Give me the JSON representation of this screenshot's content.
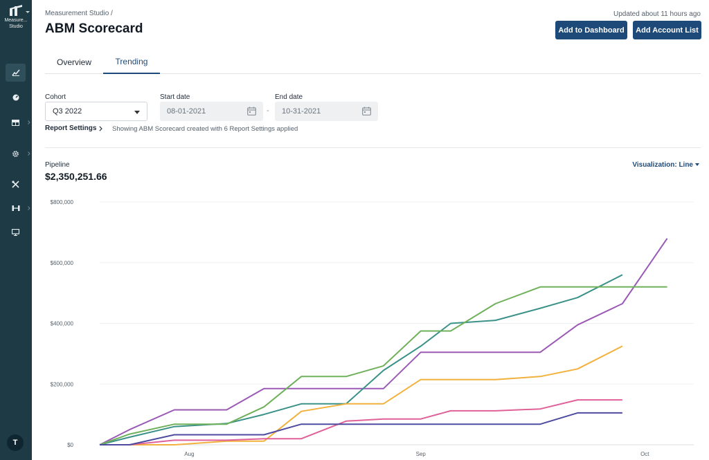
{
  "sidebar": {
    "brand_text": "Measure... Studio",
    "avatar_initial": "T",
    "items": [
      {
        "name": "trending-icon"
      },
      {
        "name": "gauge-icon"
      },
      {
        "name": "table-icon"
      },
      {
        "name": "gear-icon"
      },
      {
        "name": "tools-icon"
      },
      {
        "name": "connector-icon"
      },
      {
        "name": "monitor-icon"
      }
    ]
  },
  "header": {
    "breadcrumb": "Measurement Studio /",
    "title": "ABM Scorecard",
    "updated": "Updated about 11 hours ago",
    "add_dashboard_label": "Add to Dashboard",
    "add_account_list_label": "Add Account List"
  },
  "tabs": {
    "overview": "Overview",
    "trending": "Trending",
    "active": "Trending"
  },
  "filters": {
    "cohort_label": "Cohort",
    "cohort_value": "Q3 2022",
    "start_label": "Start date",
    "start_value": "08-01-2021",
    "end_label": "End date",
    "end_value": "10-31-2021",
    "separator": "-",
    "report_settings_label": "Report Settings",
    "report_note": "Showing ABM Scorecard created with 6 Report Settings applied"
  },
  "metric": {
    "label": "Pipeline",
    "value": "$2,350,251.66",
    "visualization": "Visualization: Line"
  },
  "colors": {
    "sidebar_bg": "#1d3a45",
    "accent": "#1d4a78"
  },
  "chart_data": {
    "type": "line",
    "x": [
      "2021-07-20",
      "2021-07-24",
      "2021-07-30",
      "2021-08-06",
      "2021-08-11",
      "2021-08-16",
      "2021-08-22",
      "2021-08-27",
      "2021-09-01",
      "2021-09-05",
      "2021-09-11",
      "2021-09-17",
      "2021-09-22",
      "2021-09-28",
      "2021-10-04",
      "2021-10-07"
    ],
    "x_ticks": [
      "Aug",
      "Sep",
      "Oct"
    ],
    "y_ticks": [
      "$0",
      "$200,000",
      "$400,000",
      "$600,000",
      "$800,000"
    ],
    "ylim": [
      0,
      800000
    ],
    "grid": true,
    "series": [
      {
        "color": "#9b59b6",
        "values": [
          0,
          50000,
          115000,
          115000,
          185000,
          185000,
          185000,
          185000,
          305000,
          305000,
          305000,
          305000,
          395000,
          465000,
          680000,
          null
        ]
      },
      {
        "color": "#3a9188",
        "values": [
          0,
          25000,
          60000,
          70000,
          100000,
          135000,
          135000,
          245000,
          325000,
          400000,
          410000,
          450000,
          485000,
          560000,
          null,
          null
        ]
      },
      {
        "color": "#6fb05a",
        "values": [
          0,
          35000,
          68000,
          68000,
          125000,
          225000,
          225000,
          260000,
          375000,
          375000,
          465000,
          520000,
          520000,
          520000,
          520000,
          null
        ]
      },
      {
        "color": "#f2b13c",
        "values": [
          0,
          0,
          0,
          12000,
          12000,
          110000,
          135000,
          135000,
          215000,
          215000,
          215000,
          225000,
          250000,
          325000,
          null,
          null
        ]
      },
      {
        "color": "#e0609a",
        "values": [
          0,
          0,
          15000,
          15000,
          20000,
          20000,
          78000,
          85000,
          85000,
          112000,
          112000,
          118000,
          148000,
          148000,
          null,
          null
        ]
      },
      {
        "color": "#4e4aa0",
        "values": [
          0,
          0,
          33000,
          33000,
          33000,
          68000,
          68000,
          68000,
          68000,
          68000,
          68000,
          68000,
          105000,
          105000,
          null,
          null
        ]
      }
    ]
  }
}
